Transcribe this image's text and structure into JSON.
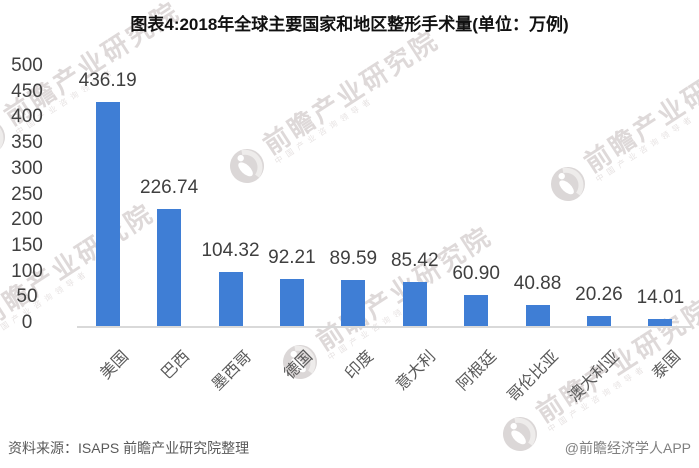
{
  "title": "图表4:2018年全球主要国家和地区整形手术量(单位：万例)",
  "chart_data": {
    "type": "bar",
    "title": "图表4:2018年全球主要国家和地区整形手术量(单位：万例)",
    "unit": "万例",
    "categories": [
      "美国",
      "巴西",
      "墨西哥",
      "德国",
      "印度",
      "意大利",
      "阿根廷",
      "哥伦比亚",
      "澳大利亚",
      "泰国"
    ],
    "values": [
      436.19,
      226.74,
      104.32,
      92.21,
      89.59,
      85.42,
      60.9,
      40.88,
      20.26,
      14.01
    ],
    "value_labels": [
      "436.19",
      "226.74",
      "104.32",
      "92.21",
      "89.59",
      "85.42",
      "60.90",
      "40.88",
      "20.26",
      "14.01"
    ],
    "xlabel": "",
    "ylabel": "",
    "ylim": [
      0,
      500
    ],
    "yticks": [
      0,
      50,
      100,
      150,
      200,
      250,
      300,
      350,
      400,
      450,
      500
    ],
    "legend": "none",
    "grid": false,
    "bar_color": "#3F7ED5",
    "axis_line_color": "#d9d9d9",
    "value_label_color": "#3f3f3f",
    "category_label_rotation_deg": -45
  },
  "watermark": {
    "brand": "前瞻产业研究院",
    "tagline": "中国产业咨询领导者"
  },
  "footer": {
    "source": "资料来源：ISAPS 前瞻产业研究院整理",
    "brand": "@前瞻经济学人APP"
  }
}
